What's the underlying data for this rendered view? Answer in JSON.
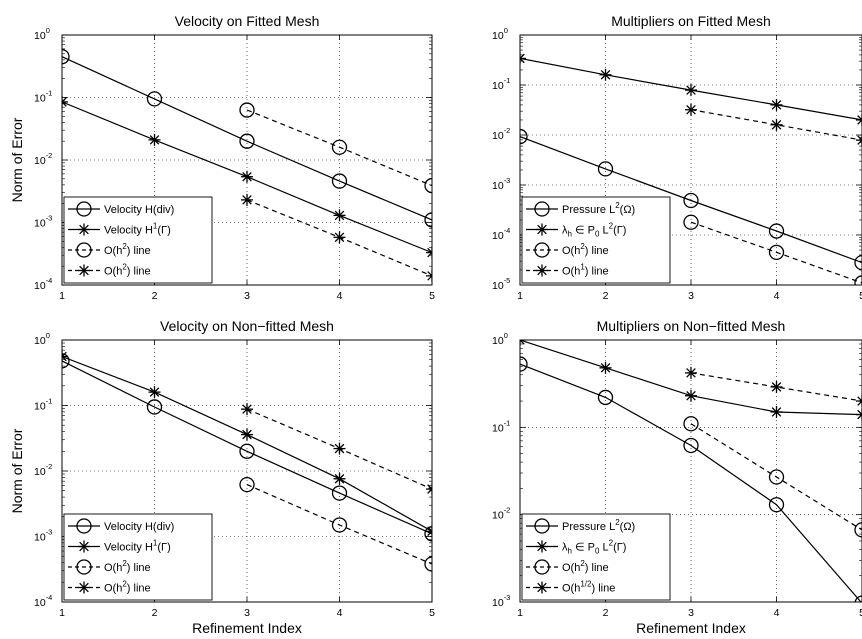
{
  "figure": {
    "xlabel": "Refinement Index",
    "ylabel": "Norm of Error"
  },
  "chart_data": [
    {
      "type": "line",
      "title": "Velocity on Fitted Mesh",
      "ylabel": "Norm of Error",
      "xlabel": "",
      "y_scale": "log",
      "xlim": [
        1,
        5
      ],
      "ylim": [
        0.0001,
        1
      ],
      "x_ticks": [
        "1",
        "2",
        "3",
        "4",
        "5"
      ],
      "y_ticks": [
        {
          "base": "10",
          "exp": "0"
        },
        {
          "base": "10",
          "exp": "-1"
        },
        {
          "base": "10",
          "exp": "-2"
        },
        {
          "base": "10",
          "exp": "-3"
        },
        {
          "base": "10",
          "exp": "-4"
        }
      ],
      "legend_position": "bottom-left",
      "series": [
        {
          "name": "Velocity H(div)",
          "marker": "circle",
          "dash": false,
          "x": [
            1,
            2,
            3,
            4,
            5
          ],
          "values": [
            0.45,
            0.095,
            0.02,
            0.0046,
            0.0011
          ]
        },
        {
          "name": "Velocity H1(Γ)",
          "marker": "star",
          "dash": false,
          "x": [
            1,
            2,
            3,
            4,
            5
          ],
          "values": [
            0.085,
            0.021,
            0.0054,
            0.0013,
            0.00033
          ]
        },
        {
          "name": "O(h2) line",
          "marker": "circle",
          "dash": true,
          "x": [
            3,
            4,
            5
          ],
          "values": [
            0.063,
            0.016,
            0.0039
          ]
        },
        {
          "name": "O(h2) line",
          "marker": "star",
          "dash": true,
          "x": [
            3,
            4,
            5
          ],
          "values": [
            0.0023,
            0.00058,
            0.00014
          ]
        }
      ],
      "legend": [
        {
          "marker": "circle",
          "dash": false,
          "text": "Velocity H(div)",
          "sup": "",
          "tail": ""
        },
        {
          "marker": "star",
          "dash": false,
          "text": "Velocity H",
          "sup": "1",
          "tail": "(Γ)"
        },
        {
          "marker": "circle",
          "dash": true,
          "text": "O(h",
          "sup": "2",
          "tail": ") line"
        },
        {
          "marker": "star",
          "dash": true,
          "text": "O(h",
          "sup": "2",
          "tail": ") line"
        }
      ]
    },
    {
      "type": "line",
      "title": "Multipliers on Fitted Mesh",
      "ylabel": "",
      "xlabel": "",
      "y_scale": "log",
      "xlim": [
        1,
        5
      ],
      "ylim": [
        1e-05,
        1
      ],
      "x_ticks": [
        "1",
        "2",
        "3",
        "4",
        "5"
      ],
      "y_ticks": [
        {
          "base": "10",
          "exp": "0"
        },
        {
          "base": "10",
          "exp": "-1"
        },
        {
          "base": "10",
          "exp": "-2"
        },
        {
          "base": "10",
          "exp": "-3"
        },
        {
          "base": "10",
          "exp": "-4"
        },
        {
          "base": "10",
          "exp": "-5"
        }
      ],
      "legend_position": "bottom-left",
      "series": [
        {
          "name": "Pressure L2(Ω)",
          "marker": "circle",
          "dash": false,
          "x": [
            1,
            2,
            3,
            4,
            5
          ],
          "values": [
            0.0093,
            0.0021,
            0.00049,
            0.00012,
            2.8e-05
          ]
        },
        {
          "name": "λh ∈ P0 L2(Γ)",
          "marker": "star",
          "dash": false,
          "x": [
            1,
            2,
            3,
            4,
            5
          ],
          "values": [
            0.34,
            0.16,
            0.079,
            0.04,
            0.02
          ]
        },
        {
          "name": "O(h2) line",
          "marker": "circle",
          "dash": true,
          "x": [
            3,
            4,
            5
          ],
          "values": [
            0.00018,
            4.5e-05,
            1.1e-05
          ]
        },
        {
          "name": "O(h1) line",
          "marker": "star",
          "dash": true,
          "x": [
            3,
            4,
            5
          ],
          "values": [
            0.032,
            0.016,
            0.0079
          ]
        }
      ],
      "legend": [
        {
          "marker": "circle",
          "dash": false,
          "text": "Pressure L",
          "sup": "2",
          "tail": "(Ω)"
        },
        {
          "marker": "star",
          "dash": false,
          "text": "λ",
          "sub": "h",
          "mid": " ∈ P",
          "sub2": "0",
          "text2": " L",
          "sup": "2",
          "tail": "(Γ)"
        },
        {
          "marker": "circle",
          "dash": true,
          "text": "O(h",
          "sup": "2",
          "tail": ") line"
        },
        {
          "marker": "star",
          "dash": true,
          "text": "O(h",
          "sup": "1",
          "tail": ") line"
        }
      ]
    },
    {
      "type": "line",
      "title": "Velocity on Non−fitted Mesh",
      "ylabel": "Norm of Error",
      "xlabel": "Refinement Index",
      "y_scale": "log",
      "xlim": [
        1,
        5
      ],
      "ylim": [
        0.0001,
        1
      ],
      "x_ticks": [
        "1",
        "2",
        "3",
        "4",
        "5"
      ],
      "y_ticks": [
        {
          "base": "10",
          "exp": "0"
        },
        {
          "base": "10",
          "exp": "-1"
        },
        {
          "base": "10",
          "exp": "-2"
        },
        {
          "base": "10",
          "exp": "-3"
        },
        {
          "base": "10",
          "exp": "-4"
        }
      ],
      "legend_position": "bottom-left",
      "series": [
        {
          "name": "Velocity H(div)",
          "marker": "circle",
          "dash": false,
          "x": [
            1,
            2,
            3,
            4,
            5
          ],
          "values": [
            0.48,
            0.095,
            0.02,
            0.0046,
            0.0011
          ]
        },
        {
          "name": "Velocity H1(Γ)",
          "marker": "star",
          "dash": false,
          "x": [
            1,
            2,
            3,
            4,
            5
          ],
          "values": [
            0.56,
            0.16,
            0.036,
            0.0076,
            0.0012
          ]
        },
        {
          "name": "O(h2) line",
          "marker": "circle",
          "dash": true,
          "x": [
            3,
            4,
            5
          ],
          "values": [
            0.0062,
            0.0015,
            0.00038
          ]
        },
        {
          "name": "O(h2) line",
          "marker": "star",
          "dash": true,
          "x": [
            3,
            4,
            5
          ],
          "values": [
            0.088,
            0.022,
            0.0053
          ]
        }
      ],
      "legend": [
        {
          "marker": "circle",
          "dash": false,
          "text": "Velocity H(div)",
          "sup": "",
          "tail": ""
        },
        {
          "marker": "star",
          "dash": false,
          "text": "Velocity H",
          "sup": "1",
          "tail": "(Γ)"
        },
        {
          "marker": "circle",
          "dash": true,
          "text": "O(h",
          "sup": "2",
          "tail": ") line"
        },
        {
          "marker": "star",
          "dash": true,
          "text": "O(h",
          "sup": "2",
          "tail": ") line"
        }
      ]
    },
    {
      "type": "line",
      "title": "Multipliers on Non−fitted Mesh",
      "ylabel": "",
      "xlabel": "Refinement Index",
      "y_scale": "log",
      "xlim": [
        1,
        5
      ],
      "ylim": [
        0.001,
        1
      ],
      "x_ticks": [
        "1",
        "2",
        "3",
        "4",
        "5"
      ],
      "y_ticks": [
        {
          "base": "10",
          "exp": "0"
        },
        {
          "base": "10",
          "exp": "-1"
        },
        {
          "base": "10",
          "exp": "-2"
        },
        {
          "base": "10",
          "exp": "-3"
        }
      ],
      "legend_position": "bottom-left",
      "series": [
        {
          "name": "Pressure L2(Ω)",
          "marker": "circle",
          "dash": false,
          "x": [
            1,
            2,
            3,
            4,
            5
          ],
          "values": [
            0.53,
            0.22,
            0.062,
            0.013,
            0.00097
          ]
        },
        {
          "name": "λh ∈ P0 L2(Γ)",
          "marker": "star",
          "dash": false,
          "x": [
            1,
            2,
            3,
            4,
            5
          ],
          "values": [
            1.0,
            0.48,
            0.23,
            0.15,
            0.14
          ]
        },
        {
          "name": "O(h2) line",
          "marker": "circle",
          "dash": true,
          "x": [
            3,
            4,
            5
          ],
          "values": [
            0.11,
            0.027,
            0.0067
          ]
        },
        {
          "name": "O(h1/2) line",
          "marker": "star",
          "dash": true,
          "x": [
            3,
            4,
            5
          ],
          "values": [
            0.42,
            0.29,
            0.2
          ]
        }
      ],
      "legend": [
        {
          "marker": "circle",
          "dash": false,
          "text": "Pressure L",
          "sup": "2",
          "tail": "(Ω)"
        },
        {
          "marker": "star",
          "dash": false,
          "text": "λ",
          "sub": "h",
          "mid": " ∈ P",
          "sub2": "0",
          "text2": " L",
          "sup": "2",
          "tail": "(Γ)"
        },
        {
          "marker": "circle",
          "dash": true,
          "text": "O(h",
          "sup": "2",
          "tail": ") line"
        },
        {
          "marker": "star",
          "dash": true,
          "text": "O(h",
          "sup": "1/2",
          "tail": ") line"
        }
      ]
    }
  ]
}
